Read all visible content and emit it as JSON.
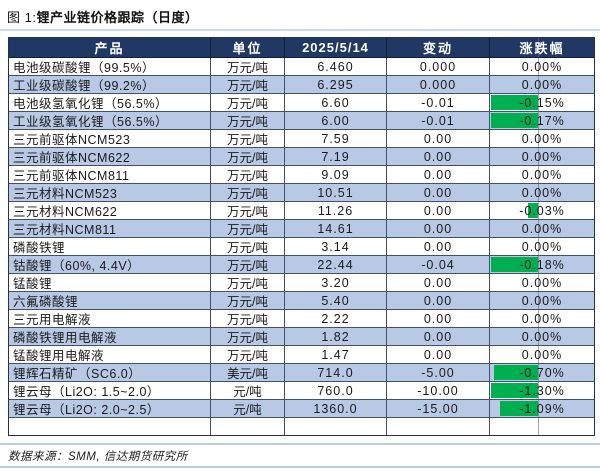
{
  "title": {
    "prefix": "图 1:",
    "main": "锂产业链价格跟踪（日度）"
  },
  "footer": {
    "source": "数据来源：SMM, 信达期货研究所"
  },
  "colors": {
    "header_bg": "#1F3864",
    "header_text": "#FFFFFF",
    "row_alt_blue": "#B7C9E5",
    "row_white": "#FFFFFF",
    "negative_bar_green": "#00B050",
    "rule_light_blue": "#B9CFE6"
  },
  "table": {
    "headers": [
      "产品",
      "单位",
      "2025/5/14",
      "变动",
      "涨跌幅"
    ],
    "rows": [
      {
        "product": "电池级碳酸锂（99.5%）",
        "unit": "万元/吨",
        "price": "6.460",
        "change": "0.000",
        "pct": "0.00%",
        "bar": 0
      },
      {
        "product": "工业级碳酸锂（99.2%）",
        "unit": "万元/吨",
        "price": "6.295",
        "change": "0.000",
        "pct": "0.00%",
        "bar": 0
      },
      {
        "product": "电池级氢氧化锂（56.5%）",
        "unit": "万元/吨",
        "price": "6.60",
        "change": "-0.01",
        "pct": "-0.15%",
        "bar": 1
      },
      {
        "product": "工业级氢氧化锂（56.5%）",
        "unit": "万元/吨",
        "price": "6.00",
        "change": "-0.01",
        "pct": "-0.17%",
        "bar": 1
      },
      {
        "product": "三元前驱体NCM523",
        "unit": "万元/吨",
        "price": "7.59",
        "change": "0.00",
        "pct": "0.00%",
        "bar": 0
      },
      {
        "product": "三元前驱体NCM622",
        "unit": "万元/吨",
        "price": "7.19",
        "change": "0.00",
        "pct": "0.00%",
        "bar": 0
      },
      {
        "product": "三元前驱体NCM811",
        "unit": "万元/吨",
        "price": "9.09",
        "change": "0.00",
        "pct": "0.00%",
        "bar": 0
      },
      {
        "product": "三元材料NCM523",
        "unit": "万元/吨",
        "price": "10.51",
        "change": "0.00",
        "pct": "0.00%",
        "bar": 0
      },
      {
        "product": "三元材料NCM622",
        "unit": "万元/吨",
        "price": "11.26",
        "change": "0.00",
        "pct": "-0.03%",
        "bar": 0.22
      },
      {
        "product": "三元材料NCM811",
        "unit": "万元/吨",
        "price": "14.61",
        "change": "0.00",
        "pct": "0.00%",
        "bar": 0
      },
      {
        "product": "磷酸铁锂",
        "unit": "万元/吨",
        "price": "3.14",
        "change": "0.00",
        "pct": "0.00%",
        "bar": 0
      },
      {
        "product": "钴酸锂（60%, 4.4V）",
        "unit": "万元/吨",
        "price": "22.44",
        "change": "-0.04",
        "pct": "-0.18%",
        "bar": 1
      },
      {
        "product": "锰酸锂",
        "unit": "万元/吨",
        "price": "3.20",
        "change": "0.00",
        "pct": "0.00%",
        "bar": 0
      },
      {
        "product": "六氟磷酸锂",
        "unit": "万元/吨",
        "price": "5.40",
        "change": "0.00",
        "pct": "0.00%",
        "bar": 0
      },
      {
        "product": "三元用电解液",
        "unit": "万元/吨",
        "price": "2.22",
        "change": "0.00",
        "pct": "0.00%",
        "bar": 0
      },
      {
        "product": "磷酸铁锂用电解液",
        "unit": "万元/吨",
        "price": "1.82",
        "change": "0.00",
        "pct": "0.00%",
        "bar": 0
      },
      {
        "product": "锰酸锂用电解液",
        "unit": "万元/吨",
        "price": "1.47",
        "change": "0.00",
        "pct": "0.00%",
        "bar": 0
      },
      {
        "product": "锂辉石精矿（SC6.0）",
        "unit": "美元/吨",
        "price": "714.0",
        "change": "-5.00",
        "pct": "-0.70%",
        "bar": 0.93
      },
      {
        "product": "锂云母（Li2O: 1.5~2.0）",
        "unit": "元/吨",
        "price": "760.0",
        "change": "-10.00",
        "pct": "-1.30%",
        "bar": 1
      },
      {
        "product": "锂云母（Li2O: 2.0~2.5）",
        "unit": "元/吨",
        "price": "1360.0",
        "change": "-15.00",
        "pct": "-1.09%",
        "bar": 0.8
      }
    ]
  },
  "chart_data": {
    "type": "table",
    "title": "锂产业链价格跟踪（日度）",
    "date_column": "2025/5/14",
    "columns": [
      "产品",
      "单位",
      "2025/5/14",
      "变动",
      "涨跌幅(%)"
    ],
    "rows": [
      [
        "电池级碳酸锂（99.5%）",
        "万元/吨",
        6.46,
        0.0,
        0.0
      ],
      [
        "工业级碳酸锂（99.2%）",
        "万元/吨",
        6.295,
        0.0,
        0.0
      ],
      [
        "电池级氢氧化锂（56.5%）",
        "万元/吨",
        6.6,
        -0.01,
        -0.15
      ],
      [
        "工业级氢氧化锂（56.5%）",
        "万元/吨",
        6.0,
        -0.01,
        -0.17
      ],
      [
        "三元前驱体NCM523",
        "万元/吨",
        7.59,
        0.0,
        0.0
      ],
      [
        "三元前驱体NCM622",
        "万元/吨",
        7.19,
        0.0,
        0.0
      ],
      [
        "三元前驱体NCM811",
        "万元/吨",
        9.09,
        0.0,
        0.0
      ],
      [
        "三元材料NCM523",
        "万元/吨",
        10.51,
        0.0,
        0.0
      ],
      [
        "三元材料NCM622",
        "万元/吨",
        11.26,
        0.0,
        -0.03
      ],
      [
        "三元材料NCM811",
        "万元/吨",
        14.61,
        0.0,
        0.0
      ],
      [
        "磷酸铁锂",
        "万元/吨",
        3.14,
        0.0,
        0.0
      ],
      [
        "钴酸锂（60%, 4.4V）",
        "万元/吨",
        22.44,
        -0.04,
        -0.18
      ],
      [
        "锰酸锂",
        "万元/吨",
        3.2,
        0.0,
        0.0
      ],
      [
        "六氟磷酸锂",
        "万元/吨",
        5.4,
        0.0,
        0.0
      ],
      [
        "三元用电解液",
        "万元/吨",
        2.22,
        0.0,
        0.0
      ],
      [
        "磷酸铁锂用电解液",
        "万元/吨",
        1.82,
        0.0,
        0.0
      ],
      [
        "锰酸锂用电解液",
        "万元/吨",
        1.47,
        0.0,
        0.0
      ],
      [
        "锂辉石精矿（SC6.0）",
        "美元/吨",
        714.0,
        -5.0,
        -0.7
      ],
      [
        "锂云母（Li2O: 1.5~2.0）",
        "元/吨",
        760.0,
        -10.0,
        -1.3
      ],
      [
        "锂云母（Li2O: 2.0~2.5）",
        "元/吨",
        1360.0,
        -15.0,
        -1.09
      ]
    ]
  }
}
